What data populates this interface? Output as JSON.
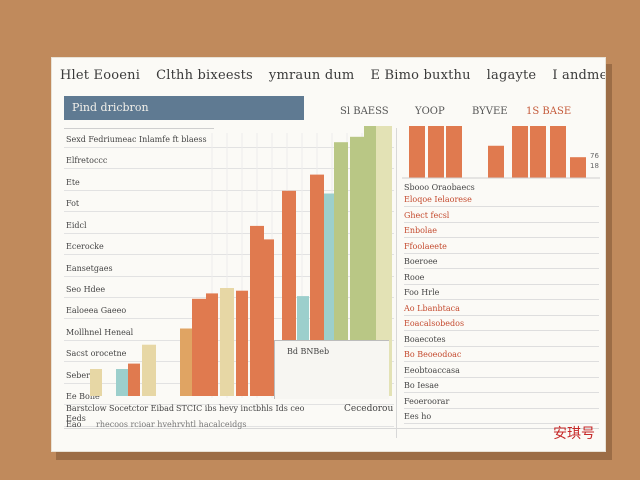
{
  "title": [
    "Hlet Eooeni",
    "Clthh bixeests",
    "ymraun dum",
    "E Bimo buxthu",
    "lagayte",
    "I andmecesrfers"
  ],
  "header_bar": "Pind dricbron",
  "top_labels": [
    {
      "text": "Sl BAESS",
      "accent": false
    },
    {
      "text": "YOOP",
      "accent": false
    },
    {
      "text": "BYVEE",
      "accent": false
    },
    {
      "text": "1S BASE",
      "accent": true
    }
  ],
  "row_labels": [
    "Sexd Fedriumeac  Inlamfe  ft  blaess",
    "Elfretoccc",
    "Ete",
    "Fot",
    "Eidcl",
    "Ecerocke",
    "Eansetgaes",
    "Seo Hdee",
    "Ealoeea Gaeeo",
    "Mollhnel Heneal",
    "Sacst orocetne",
    "Seberd",
    "Ee Bone",
    "Eeds"
  ],
  "footer": {
    "left": "Barstclow Socetctor Eibad",
    "mid": "STCIC  ibs  hevy  inctbhls  Ids  ceo",
    "right": "Cecedorou",
    "row2_left": "Eao",
    "row2_mid": "rhecoos  rcioar  hvehrvhtl  hacalceidgs"
  },
  "inset_label": "Bd BNBeb",
  "right_panel_heading": "Sbooo Oraobaecs",
  "right_items": [
    {
      "text": "Eloqoe Ielaorese",
      "accent": true
    },
    {
      "text": "Ghect  fecsl",
      "accent": true
    },
    {
      "text": "Enbolae",
      "accent": true
    },
    {
      "text": "Ffoolaeete",
      "accent": true
    },
    {
      "text": "Boeroee",
      "accent": false
    },
    {
      "text": "Rooe",
      "accent": false
    },
    {
      "text": "Foo Hrle",
      "accent": false
    },
    {
      "text": "Ao Lbanbtaca",
      "accent": true
    },
    {
      "text": "Eoacalsobedos",
      "accent": true
    },
    {
      "text": "Boaecotes",
      "accent": false
    },
    {
      "text": "Bo Beoeodoac",
      "accent": true
    },
    {
      "text": "Eeobtoaccasa",
      "accent": false
    },
    {
      "text": "Bo Iesae",
      "accent": false
    },
    {
      "text": "Feoeroorar",
      "accent": false
    },
    {
      "text": "Ees ho",
      "accent": false
    }
  ],
  "right_tick_labels": [
    "76",
    "18"
  ],
  "watermark": "安琪号",
  "colors": {
    "orange": "#e07a4f",
    "tan": "#e0a463",
    "sand": "#e7d7a5",
    "teal": "#9ccfcc",
    "olive": "#b9c785",
    "cream": "#e3e2b5",
    "slate": "#5f7a92"
  },
  "chart_data": [
    {
      "type": "bar",
      "title": "",
      "xlabel": "",
      "ylabel": "",
      "ylim": [
        0,
        100
      ],
      "grid": true,
      "bars": [
        {
          "value": 10,
          "color": "sand"
        },
        {
          "value": 10,
          "color": "teal"
        },
        {
          "value": 12,
          "color": "orange"
        },
        {
          "value": 19,
          "color": "sand"
        },
        {
          "value": 25,
          "color": "tan"
        },
        {
          "value": 36,
          "color": "orange"
        },
        {
          "value": 38,
          "color": "orange"
        },
        {
          "value": 40,
          "color": "sand"
        },
        {
          "value": 39,
          "color": "orange"
        },
        {
          "value": 63,
          "color": "orange"
        },
        {
          "value": 58,
          "color": "orange"
        },
        {
          "value": 76,
          "color": "orange"
        },
        {
          "value": 37,
          "color": "teal"
        },
        {
          "value": 82,
          "color": "orange"
        },
        {
          "value": 75,
          "color": "teal"
        },
        {
          "value": 94,
          "color": "olive"
        },
        {
          "value": 96,
          "color": "olive"
        },
        {
          "value": 100,
          "color": "olive"
        },
        {
          "value": 100,
          "color": "cream"
        }
      ]
    },
    {
      "type": "bar",
      "title": "",
      "ylim": [
        0,
        100
      ],
      "bars": [
        {
          "value": 100,
          "color": "orange"
        },
        {
          "value": 100,
          "color": "orange"
        },
        {
          "value": 100,
          "color": "orange"
        },
        {
          "value": 62,
          "color": "orange"
        },
        {
          "value": 100,
          "color": "orange"
        },
        {
          "value": 100,
          "color": "orange"
        },
        {
          "value": 100,
          "color": "orange"
        },
        {
          "value": 40,
          "color": "orange"
        }
      ]
    }
  ]
}
